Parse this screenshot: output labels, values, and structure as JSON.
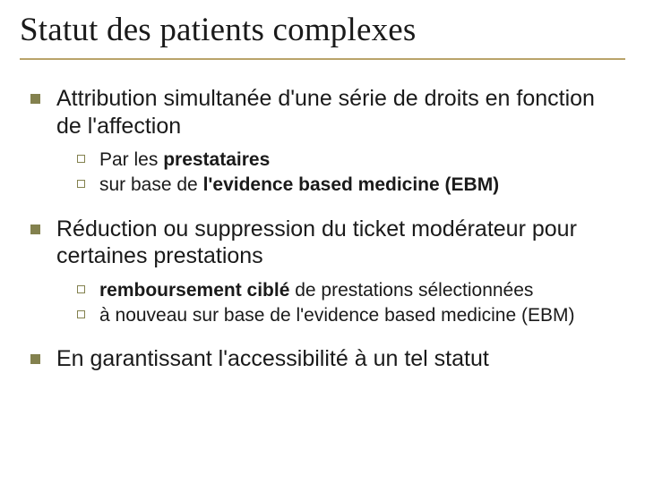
{
  "slide": {
    "title": "Statut des patients complexes",
    "colors": {
      "title_rule": "#b9a36a",
      "bullet_fill": "#83814e",
      "text": "#1a1a1a",
      "background": "#ffffff"
    },
    "typography": {
      "title_family": "Times New Roman",
      "title_fontsize": 37,
      "lvl1_fontsize": 25,
      "lvl2_fontsize": 21
    },
    "items": [
      {
        "text": "Attribution simultanée d'une série de droits en fonction de l'affection",
        "sub": [
          {
            "pre": "Par les ",
            "bold": "prestataires",
            "post": ""
          },
          {
            "pre": "sur base de ",
            "bold": "l'evidence based medicine (EBM)",
            "post": ""
          }
        ]
      },
      {
        "text": "Réduction ou suppression du ticket modérateur pour certaines prestations",
        "sub": [
          {
            "pre": "",
            "bold": "remboursement ciblé",
            "post": " de prestations sélectionnées"
          },
          {
            "pre": "à nouveau sur base de l'evidence based medicine (EBM)",
            "bold": "",
            "post": ""
          }
        ]
      },
      {
        "text": "En garantissant l'accessibilité à un tel statut",
        "sub": []
      }
    ]
  }
}
